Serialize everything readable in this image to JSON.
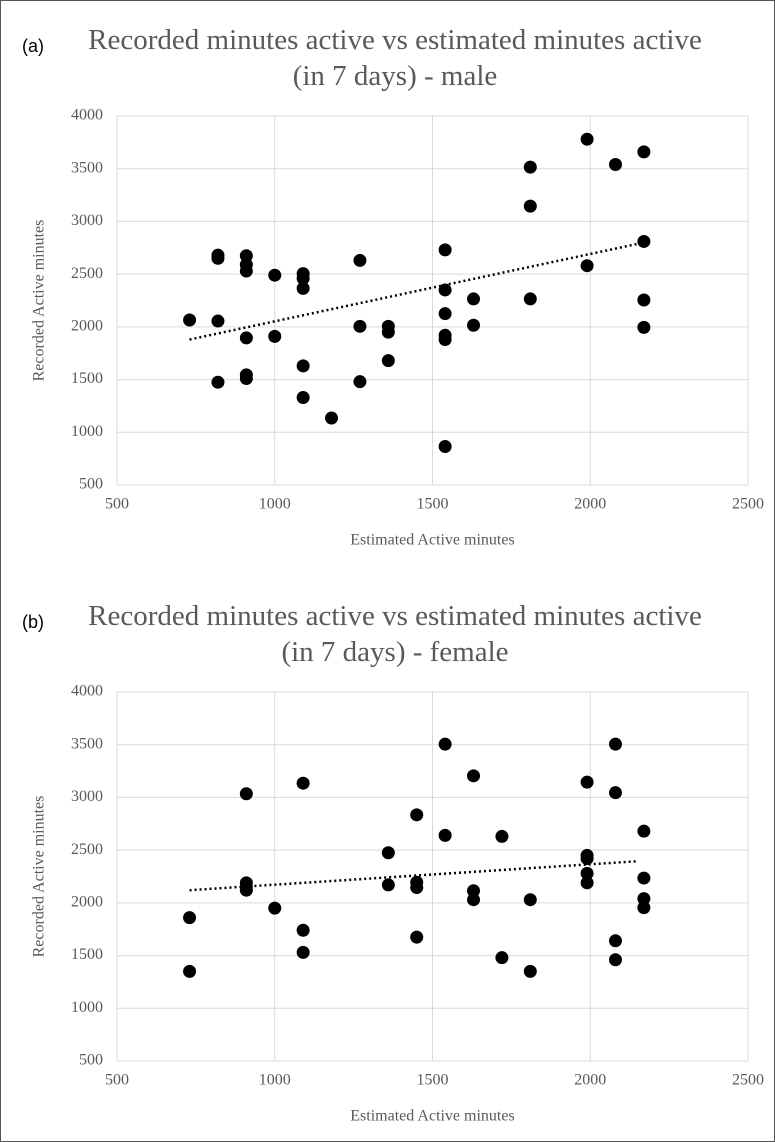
{
  "chart_data": [
    {
      "type": "scatter",
      "label": "(a)",
      "title": "Recorded minutes active vs estimated minutes active (in 7 days) - male",
      "xlabel": "Estimated Active minutes",
      "ylabel": "Recorded Active minutes",
      "xlim": [
        500,
        2500
      ],
      "xticks": [
        500,
        1000,
        1500,
        2000,
        2500
      ],
      "ylim": [
        500,
        4000
      ],
      "yticks": [
        500,
        1000,
        1500,
        2000,
        2500,
        3000,
        3500,
        4000
      ],
      "grid": true,
      "color": "#000000",
      "x": [
        730,
        820,
        820,
        820,
        820,
        910,
        910,
        910,
        910,
        910,
        910,
        1000,
        1000,
        1090,
        1090,
        1090,
        1090,
        1090,
        1180,
        1270,
        1270,
        1270,
        1360,
        1360,
        1360,
        1540,
        1540,
        1540,
        1540,
        1540,
        1540,
        1630,
        1630,
        1810,
        1810,
        1810,
        1990,
        1990,
        2080,
        2170,
        2170,
        2170,
        2170
      ],
      "y": [
        2065,
        2680,
        2650,
        2055,
        1475,
        2675,
        2590,
        2530,
        1895,
        1545,
        1510,
        2490,
        1910,
        2505,
        2460,
        2365,
        1630,
        1330,
        1135,
        2630,
        2005,
        1480,
        2005,
        1950,
        1680,
        2730,
        2350,
        2125,
        1920,
        1880,
        865,
        2265,
        2015,
        3515,
        3145,
        2265,
        3780,
        2580,
        3540,
        3660,
        2810,
        2255,
        1995
      ],
      "trendline": {
        "x": [
          730,
          2170
        ],
        "y": [
          1880,
          2800
        ]
      }
    },
    {
      "type": "scatter",
      "label": "(b)",
      "title": "Recorded minutes active vs estimated minutes active (in 7 days) - female",
      "xlabel": "Estimated Active minutes",
      "ylabel": "Recorded Active minutes",
      "xlim": [
        500,
        2500
      ],
      "xticks": [
        500,
        1000,
        1500,
        2000,
        2500
      ],
      "ylim": [
        500,
        4000
      ],
      "yticks": [
        500,
        1000,
        1500,
        2000,
        2500,
        3000,
        3500,
        4000
      ],
      "grid": true,
      "color": "#000000",
      "x": [
        730,
        730,
        910,
        910,
        910,
        910,
        1000,
        1090,
        1090,
        1090,
        1360,
        1360,
        1450,
        1450,
        1450,
        1450,
        1540,
        1540,
        1630,
        1630,
        1630,
        1720,
        1720,
        1810,
        1810,
        1990,
        1990,
        1990,
        1990,
        1990,
        2080,
        2080,
        2080,
        2080,
        2170,
        2170,
        2170,
        2170
      ],
      "y": [
        1860,
        1350,
        3035,
        2190,
        2155,
        2120,
        1950,
        3135,
        1740,
        1530,
        2475,
        2170,
        2835,
        2195,
        2145,
        1675,
        3505,
        2640,
        3205,
        2115,
        2030,
        2630,
        1480,
        2030,
        1350,
        3145,
        2450,
        2420,
        2280,
        2190,
        3505,
        3045,
        1640,
        1460,
        2680,
        2235,
        2040,
        1955
      ],
      "trendline": {
        "x": [
          730,
          2150
        ],
        "y": [
          2120,
          2395
        ]
      }
    }
  ]
}
